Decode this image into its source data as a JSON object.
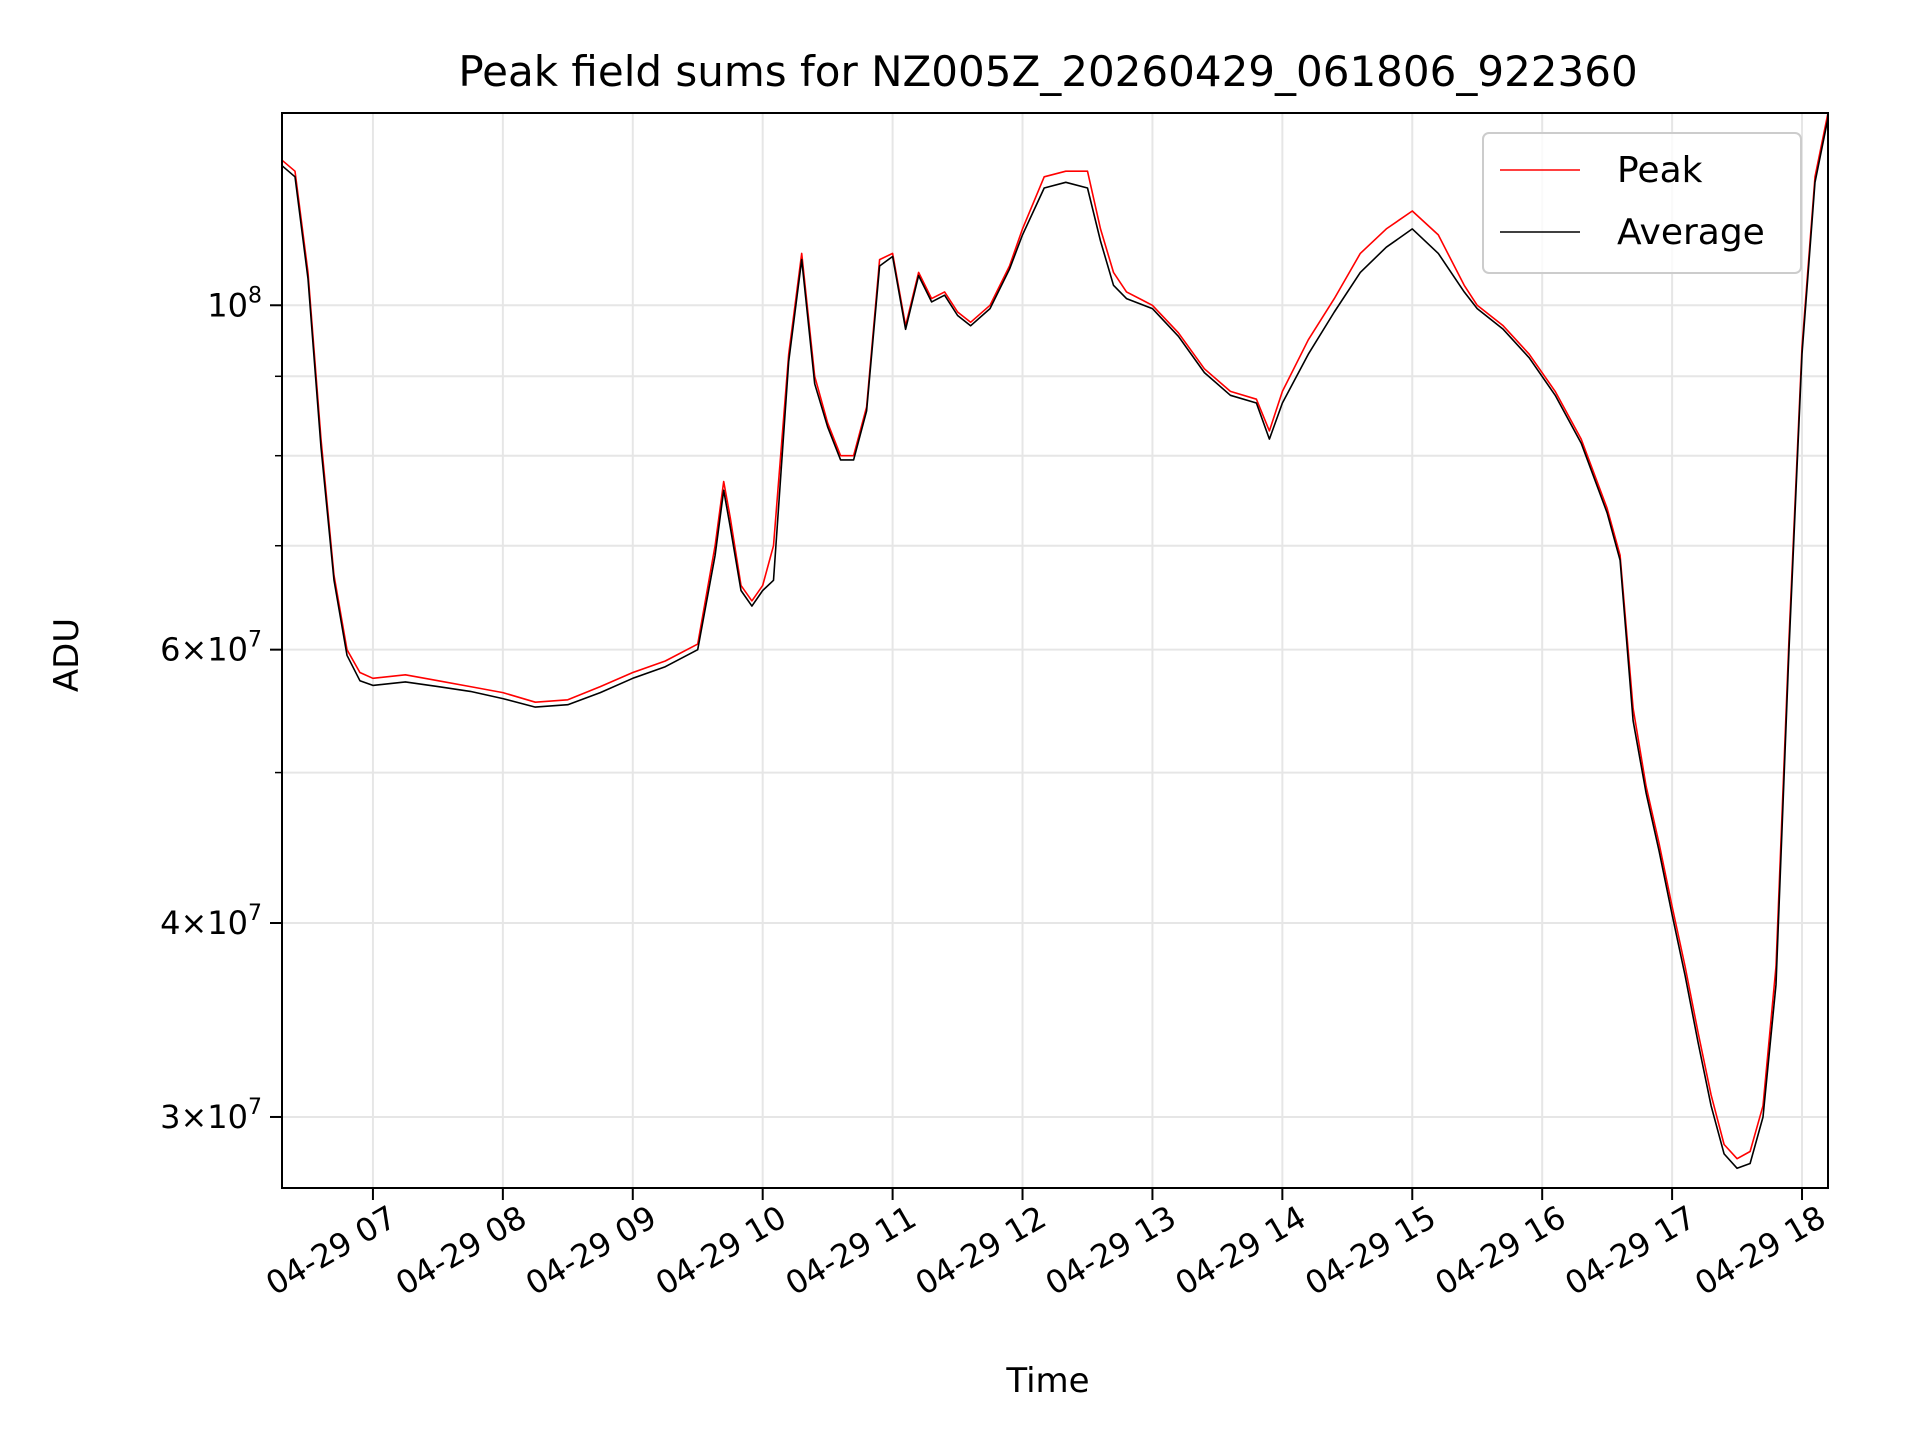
{
  "chart_data": {
    "type": "line",
    "title": "Peak field sums for NZ005Z_20260429_061806_922360",
    "xlabel": "Time",
    "ylabel": "ADU",
    "yscale": "log",
    "grid": true,
    "legend_position": "upper-right",
    "xlim": [
      "2026-04-29 06:18",
      "2026-04-29 18:12"
    ],
    "ylim": [
      27000000,
      133000000
    ],
    "x_ticks": [
      {
        "label": "04-29 07",
        "value": "2026-04-29 07:00"
      },
      {
        "label": "04-29 08",
        "value": "2026-04-29 08:00"
      },
      {
        "label": "04-29 09",
        "value": "2026-04-29 09:00"
      },
      {
        "label": "04-29 10",
        "value": "2026-04-29 10:00"
      },
      {
        "label": "04-29 11",
        "value": "2026-04-29 11:00"
      },
      {
        "label": "04-29 12",
        "value": "2026-04-29 12:00"
      },
      {
        "label": "04-29 13",
        "value": "2026-04-29 13:00"
      },
      {
        "label": "04-29 14",
        "value": "2026-04-29 14:00"
      },
      {
        "label": "04-29 15",
        "value": "2026-04-29 15:00"
      },
      {
        "label": "04-29 16",
        "value": "2026-04-29 16:00"
      },
      {
        "label": "04-29 17",
        "value": "2026-04-29 17:00"
      },
      {
        "label": "04-29 18",
        "value": "2026-04-29 18:00"
      }
    ],
    "y_major_ticks": [
      {
        "mantissa": "",
        "exponent": "8",
        "value": 100000000
      },
      {
        "mantissa": "6",
        "exponent": "7",
        "value": 60000000
      },
      {
        "mantissa": "4",
        "exponent": "7",
        "value": 40000000
      },
      {
        "mantissa": "3",
        "exponent": "7",
        "value": 30000000
      }
    ],
    "y_minor_gridlines": [
      50000000,
      70000000,
      80000000,
      90000000
    ],
    "series": [
      {
        "name": "Peak",
        "color": "#ff0000",
        "x": [
          "2026-04-29 06:18",
          "2026-04-29 06:24",
          "2026-04-29 06:30",
          "2026-04-29 06:36",
          "2026-04-29 06:42",
          "2026-04-29 06:48",
          "2026-04-29 06:54",
          "2026-04-29 07:00",
          "2026-04-29 07:15",
          "2026-04-29 07:30",
          "2026-04-29 07:45",
          "2026-04-29 08:00",
          "2026-04-29 08:15",
          "2026-04-29 08:30",
          "2026-04-29 08:45",
          "2026-04-29 09:00",
          "2026-04-29 09:15",
          "2026-04-29 09:30",
          "2026-04-29 09:38",
          "2026-04-29 09:42",
          "2026-04-29 09:45",
          "2026-04-29 09:50",
          "2026-04-29 09:55",
          "2026-04-29 10:00",
          "2026-04-29 10:05",
          "2026-04-29 10:12",
          "2026-04-29 10:18",
          "2026-04-29 10:24",
          "2026-04-29 10:30",
          "2026-04-29 10:36",
          "2026-04-29 10:42",
          "2026-04-29 10:48",
          "2026-04-29 10:54",
          "2026-04-29 11:00",
          "2026-04-29 11:06",
          "2026-04-29 11:12",
          "2026-04-29 11:18",
          "2026-04-29 11:24",
          "2026-04-29 11:30",
          "2026-04-29 11:36",
          "2026-04-29 11:45",
          "2026-04-29 11:54",
          "2026-04-29 12:00",
          "2026-04-29 12:10",
          "2026-04-29 12:20",
          "2026-04-29 12:30",
          "2026-04-29 12:36",
          "2026-04-29 12:42",
          "2026-04-29 12:48",
          "2026-04-29 13:00",
          "2026-04-29 13:12",
          "2026-04-29 13:24",
          "2026-04-29 13:36",
          "2026-04-29 13:48",
          "2026-04-29 13:54",
          "2026-04-29 14:00",
          "2026-04-29 14:12",
          "2026-04-29 14:24",
          "2026-04-29 14:36",
          "2026-04-29 14:48",
          "2026-04-29 15:00",
          "2026-04-29 15:12",
          "2026-04-29 15:24",
          "2026-04-29 15:30",
          "2026-04-29 15:42",
          "2026-04-29 15:54",
          "2026-04-29 16:06",
          "2026-04-29 16:18",
          "2026-04-29 16:30",
          "2026-04-29 16:36",
          "2026-04-29 16:42",
          "2026-04-29 16:48",
          "2026-04-29 16:54",
          "2026-04-29 17:00",
          "2026-04-29 17:06",
          "2026-04-29 17:12",
          "2026-04-29 17:18",
          "2026-04-29 17:24",
          "2026-04-29 17:30",
          "2026-04-29 17:36",
          "2026-04-29 17:42",
          "2026-04-29 17:48",
          "2026-04-29 17:54",
          "2026-04-29 18:00",
          "2026-04-29 18:06",
          "2026-04-29 18:12"
        ],
        "values": [
          124000000,
          122000000,
          105000000,
          82000000,
          67000000,
          60000000,
          58000000,
          57500000,
          57800000,
          57300000,
          56800000,
          56300000,
          55500000,
          55700000,
          56800000,
          58000000,
          59000000,
          60500000,
          70000000,
          77000000,
          73000000,
          66000000,
          64500000,
          66000000,
          70000000,
          93000000,
          108000000,
          90000000,
          84000000,
          80000000,
          80000000,
          86000000,
          107000000,
          108000000,
          97000000,
          105000000,
          101000000,
          102000000,
          99000000,
          97500000,
          100000000,
          106000000,
          112000000,
          121000000,
          122000000,
          122000000,
          112000000,
          105000000,
          102000000,
          100000000,
          96000000,
          91000000,
          88000000,
          87000000,
          83000000,
          88000000,
          95000000,
          101000000,
          108000000,
          112000000,
          115000000,
          111000000,
          103000000,
          100000000,
          97000000,
          93000000,
          88000000,
          82000000,
          74000000,
          69000000,
          55000000,
          49000000,
          45000000,
          41000000,
          37500000,
          34000000,
          31000000,
          28800000,
          28200000,
          28500000,
          30500000,
          37500000,
          61000000,
          94000000,
          121000000,
          133000000
        ]
      },
      {
        "name": "Average",
        "color": "#000000",
        "x": [
          "2026-04-29 06:18",
          "2026-04-29 06:24",
          "2026-04-29 06:30",
          "2026-04-29 06:36",
          "2026-04-29 06:42",
          "2026-04-29 06:48",
          "2026-04-29 06:54",
          "2026-04-29 07:00",
          "2026-04-29 07:15",
          "2026-04-29 07:30",
          "2026-04-29 07:45",
          "2026-04-29 08:00",
          "2026-04-29 08:15",
          "2026-04-29 08:30",
          "2026-04-29 08:45",
          "2026-04-29 09:00",
          "2026-04-29 09:15",
          "2026-04-29 09:30",
          "2026-04-29 09:38",
          "2026-04-29 09:42",
          "2026-04-29 09:45",
          "2026-04-29 09:50",
          "2026-04-29 09:55",
          "2026-04-29 10:00",
          "2026-04-29 10:05",
          "2026-04-29 10:12",
          "2026-04-29 10:18",
          "2026-04-29 10:24",
          "2026-04-29 10:30",
          "2026-04-29 10:36",
          "2026-04-29 10:42",
          "2026-04-29 10:48",
          "2026-04-29 10:54",
          "2026-04-29 11:00",
          "2026-04-29 11:06",
          "2026-04-29 11:12",
          "2026-04-29 11:18",
          "2026-04-29 11:24",
          "2026-04-29 11:30",
          "2026-04-29 11:36",
          "2026-04-29 11:45",
          "2026-04-29 11:54",
          "2026-04-29 12:00",
          "2026-04-29 12:10",
          "2026-04-29 12:20",
          "2026-04-29 12:30",
          "2026-04-29 12:36",
          "2026-04-29 12:42",
          "2026-04-29 12:48",
          "2026-04-29 13:00",
          "2026-04-29 13:12",
          "2026-04-29 13:24",
          "2026-04-29 13:36",
          "2026-04-29 13:48",
          "2026-04-29 13:54",
          "2026-04-29 14:00",
          "2026-04-29 14:12",
          "2026-04-29 14:24",
          "2026-04-29 14:36",
          "2026-04-29 14:48",
          "2026-04-29 15:00",
          "2026-04-29 15:12",
          "2026-04-29 15:24",
          "2026-04-29 15:30",
          "2026-04-29 15:42",
          "2026-04-29 15:54",
          "2026-04-29 16:06",
          "2026-04-29 16:18",
          "2026-04-29 16:30",
          "2026-04-29 16:36",
          "2026-04-29 16:42",
          "2026-04-29 16:48",
          "2026-04-29 16:54",
          "2026-04-29 17:00",
          "2026-04-29 17:06",
          "2026-04-29 17:12",
          "2026-04-29 17:18",
          "2026-04-29 17:24",
          "2026-04-29 17:30",
          "2026-04-29 17:36",
          "2026-04-29 17:42",
          "2026-04-29 17:48",
          "2026-04-29 17:54",
          "2026-04-29 18:00",
          "2026-04-29 18:06",
          "2026-04-29 18:12"
        ],
        "values": [
          123000000,
          121000000,
          104000000,
          81000000,
          66500000,
          59500000,
          57300000,
          56900000,
          57200000,
          56800000,
          56400000,
          55800000,
          55100000,
          55300000,
          56300000,
          57500000,
          58500000,
          60000000,
          69000000,
          76000000,
          72000000,
          65500000,
          64000000,
          65500000,
          66500000,
          92000000,
          107000000,
          89000000,
          83500000,
          79500000,
          79500000,
          85500000,
          106000000,
          107500000,
          96500000,
          104500000,
          100500000,
          101500000,
          98500000,
          97000000,
          99500000,
          105500000,
          111000000,
          119000000,
          120000000,
          119000000,
          110000000,
          103000000,
          101000000,
          99500000,
          95500000,
          90500000,
          87500000,
          86500000,
          82000000,
          86500000,
          93000000,
          99000000,
          105000000,
          109000000,
          112000000,
          108000000,
          102000000,
          99500000,
          96500000,
          92500000,
          87500000,
          81500000,
          73500000,
          68500000,
          54000000,
          48500000,
          44500000,
          40500000,
          37000000,
          33500000,
          30500000,
          28400000,
          27800000,
          28000000,
          30000000,
          36500000,
          60000000,
          93000000,
          120000000,
          132000000
        ]
      }
    ]
  }
}
